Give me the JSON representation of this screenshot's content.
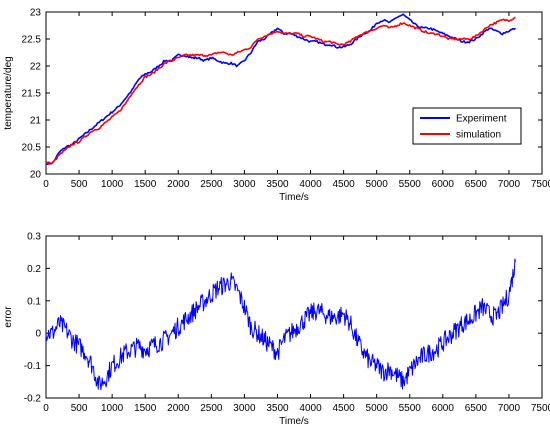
{
  "chart_data": [
    {
      "type": "line",
      "xlabel": "Time/s",
      "ylabel": "temperature/deg",
      "xlim": [
        0,
        7500
      ],
      "ylim": [
        20,
        23
      ],
      "xticks": [
        0,
        500,
        1000,
        1500,
        2000,
        2500,
        3000,
        3500,
        4000,
        4500,
        5000,
        5500,
        6000,
        6500,
        7000,
        7500
      ],
      "yticks": [
        20,
        20.5,
        21,
        21.5,
        22,
        22.5,
        23
      ],
      "grid": false,
      "legend": "right",
      "series": [
        {
          "name": "Experiment",
          "color": "#0000ff",
          "x": [
            0,
            100,
            200,
            300,
            400,
            500,
            600,
            700,
            800,
            900,
            1000,
            1100,
            1200,
            1300,
            1400,
            1500,
            1600,
            1700,
            1800,
            1900,
            2000,
            2100,
            2200,
            2300,
            2400,
            2500,
            2600,
            2700,
            2800,
            2900,
            3000,
            3100,
            3200,
            3300,
            3400,
            3500,
            3600,
            3700,
            3800,
            3900,
            4000,
            4100,
            4200,
            4300,
            4400,
            4500,
            4600,
            4700,
            4800,
            4900,
            5000,
            5100,
            5200,
            5300,
            5400,
            5500,
            5600,
            5700,
            5800,
            5900,
            6000,
            6100,
            6200,
            6300,
            6400,
            6500,
            6600,
            6700,
            6800,
            6900,
            7000,
            7100
          ],
          "y": [
            20.2,
            20.2,
            20.4,
            20.5,
            20.55,
            20.65,
            20.75,
            20.85,
            20.95,
            21.05,
            21.15,
            21.25,
            21.4,
            21.55,
            21.75,
            21.85,
            21.9,
            22.0,
            22.1,
            22.1,
            22.2,
            22.2,
            22.15,
            22.15,
            22.1,
            22.15,
            22.1,
            22.05,
            22.05,
            22.0,
            22.1,
            22.25,
            22.45,
            22.5,
            22.6,
            22.7,
            22.6,
            22.6,
            22.55,
            22.5,
            22.45,
            22.45,
            22.4,
            22.4,
            22.35,
            22.35,
            22.4,
            22.5,
            22.6,
            22.65,
            22.8,
            22.85,
            22.8,
            22.9,
            22.95,
            22.85,
            22.75,
            22.7,
            22.7,
            22.65,
            22.6,
            22.55,
            22.5,
            22.45,
            22.45,
            22.5,
            22.6,
            22.7,
            22.65,
            22.6,
            22.65,
            22.7
          ]
        },
        {
          "name": "simulation",
          "color": "#ff0000",
          "x": [
            0,
            100,
            200,
            300,
            400,
            500,
            600,
            700,
            800,
            900,
            1000,
            1100,
            1200,
            1300,
            1400,
            1500,
            1600,
            1700,
            1800,
            1900,
            2000,
            2100,
            2200,
            2300,
            2400,
            2500,
            2600,
            2700,
            2800,
            2900,
            3000,
            3100,
            3200,
            3300,
            3400,
            3500,
            3600,
            3700,
            3800,
            3900,
            4000,
            4100,
            4200,
            4300,
            4400,
            4500,
            4600,
            4700,
            4800,
            4900,
            5000,
            5100,
            5200,
            5300,
            5400,
            5500,
            5600,
            5700,
            5800,
            5900,
            6000,
            6100,
            6200,
            6300,
            6400,
            6500,
            6600,
            6700,
            6800,
            6900,
            7000,
            7100
          ],
          "y": [
            20.2,
            20.2,
            20.35,
            20.45,
            20.55,
            20.6,
            20.7,
            20.8,
            20.85,
            20.95,
            21.05,
            21.15,
            21.3,
            21.5,
            21.65,
            21.8,
            21.85,
            21.95,
            22.05,
            22.1,
            22.15,
            22.2,
            22.2,
            22.2,
            22.2,
            22.2,
            22.25,
            22.25,
            22.2,
            22.25,
            22.3,
            22.35,
            22.5,
            22.55,
            22.6,
            22.65,
            22.6,
            22.6,
            22.6,
            22.55,
            22.55,
            22.5,
            22.45,
            22.45,
            22.4,
            22.4,
            22.45,
            22.55,
            22.6,
            22.65,
            22.7,
            22.75,
            22.7,
            22.75,
            22.8,
            22.75,
            22.7,
            22.65,
            22.6,
            22.6,
            22.55,
            22.5,
            22.5,
            22.5,
            22.5,
            22.55,
            22.65,
            22.75,
            22.8,
            22.85,
            22.85,
            22.9
          ]
        }
      ]
    },
    {
      "type": "line",
      "xlabel": "Time/s",
      "ylabel": "error",
      "xlim": [
        0,
        7500
      ],
      "ylim": [
        -0.2,
        0.3
      ],
      "xticks": [
        0,
        500,
        1000,
        1500,
        2000,
        2500,
        3000,
        3500,
        4000,
        4500,
        5000,
        5500,
        6000,
        6500,
        7000,
        7500
      ],
      "yticks": [
        -0.2,
        -0.1,
        0,
        0.1,
        0.2,
        0.3
      ],
      "grid": false,
      "series": [
        {
          "color": "#0000ff",
          "x": [
            0,
            100,
            200,
            300,
            400,
            500,
            600,
            700,
            800,
            900,
            1000,
            1100,
            1200,
            1300,
            1400,
            1500,
            1600,
            1700,
            1800,
            1900,
            2000,
            2100,
            2200,
            2300,
            2400,
            2500,
            2600,
            2700,
            2800,
            2900,
            3000,
            3100,
            3200,
            3300,
            3400,
            3500,
            3600,
            3700,
            3800,
            3900,
            4000,
            4100,
            4200,
            4300,
            4400,
            4500,
            4600,
            4700,
            4800,
            4900,
            5000,
            5100,
            5200,
            5300,
            5400,
            5500,
            5600,
            5700,
            5800,
            5900,
            6000,
            6100,
            6200,
            6300,
            6400,
            6500,
            6600,
            6700,
            6800,
            6900,
            7000,
            7100
          ],
          "y": [
            0.0,
            0.0,
            0.03,
            0.01,
            -0.02,
            -0.04,
            -0.06,
            -0.1,
            -0.16,
            -0.14,
            -0.1,
            -0.08,
            -0.06,
            -0.05,
            -0.04,
            -0.05,
            -0.04,
            -0.03,
            -0.02,
            0.0,
            0.02,
            0.04,
            0.06,
            0.08,
            0.1,
            0.12,
            0.14,
            0.15,
            0.16,
            0.13,
            0.08,
            0.02,
            0.0,
            -0.02,
            -0.04,
            -0.06,
            -0.02,
            0.0,
            0.02,
            0.04,
            0.06,
            0.07,
            0.06,
            0.05,
            0.05,
            0.06,
            0.03,
            -0.02,
            -0.06,
            -0.09,
            -0.1,
            -0.12,
            -0.11,
            -0.13,
            -0.15,
            -0.12,
            -0.09,
            -0.07,
            -0.06,
            -0.05,
            -0.03,
            -0.01,
            0.01,
            0.03,
            0.04,
            0.06,
            0.08,
            0.06,
            0.05,
            0.08,
            0.12,
            0.22
          ]
        }
      ]
    }
  ]
}
